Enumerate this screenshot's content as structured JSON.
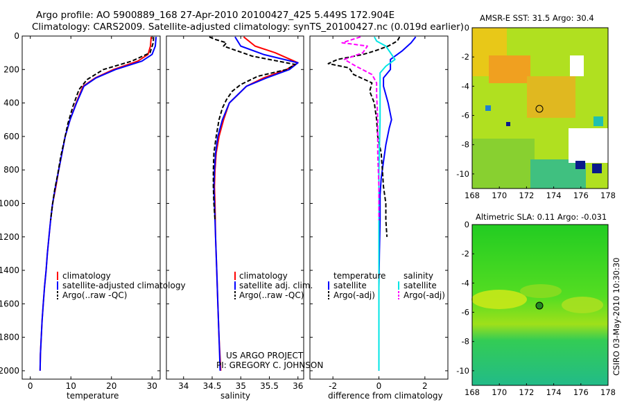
{
  "page": {
    "title_line1": "Argo profile: AO 5900889_168 27-Apr-2010 20100427_425 5.449S 172.904E",
    "title_line2": "Climatology: CARS2009. Satellite-adjusted climatology: synTS_20100427.nc (0.019d earlier)",
    "credit_line1": "US ARGO PROJECT",
    "credit_line2": "PI: GREGORY C. JOHNSON",
    "side_stamp": "CSIRO 03-May-2010 10:30:30"
  },
  "colors": {
    "climatology": "#ff0000",
    "satellite": "#0000ff",
    "argo": "#000000",
    "sal_satellite": "#00e5e5",
    "sal_argo": "#ff00ff"
  },
  "chart_data": [
    {
      "type": "line",
      "title": "",
      "xlabel": "temperature",
      "ylabel": "",
      "xlim": [
        -2,
        32
      ],
      "ylim": [
        2050,
        0
      ],
      "xticks": [
        0,
        10,
        20,
        30
      ],
      "yticks": [
        0,
        200,
        400,
        600,
        800,
        1000,
        1200,
        1400,
        1600,
        1800,
        2000
      ],
      "legend": [
        "climatology",
        "satellite-adjusted climatology",
        "Argo(..raw -QC)"
      ],
      "series": [
        {
          "name": "climatology",
          "color": "#ff0000",
          "dash": false,
          "points": [
            [
              29.8,
              5
            ],
            [
              29.6,
              60
            ],
            [
              29.0,
              110
            ],
            [
              26.5,
              150
            ],
            [
              20.5,
              200
            ],
            [
              16.0,
              250
            ],
            [
              13.0,
              300
            ],
            [
              11.3,
              400
            ],
            [
              9.8,
              500
            ],
            [
              8.6,
              600
            ],
            [
              7.8,
              700
            ],
            [
              7.0,
              800
            ],
            [
              6.3,
              900
            ],
            [
              5.5,
              1000
            ],
            [
              5.0,
              1100
            ],
            [
              4.6,
              1200
            ],
            [
              4.2,
              1300
            ],
            [
              3.9,
              1400
            ],
            [
              3.5,
              1500
            ],
            [
              3.2,
              1600
            ],
            [
              2.9,
              1700
            ],
            [
              2.7,
              1800
            ],
            [
              2.5,
              1900
            ],
            [
              2.4,
              2000
            ]
          ]
        },
        {
          "name": "satellite-adjusted climatology",
          "color": "#0000ff",
          "dash": false,
          "points": [
            [
              31.0,
              5
            ],
            [
              30.8,
              60
            ],
            [
              30.0,
              110
            ],
            [
              27.5,
              150
            ],
            [
              21.0,
              200
            ],
            [
              16.2,
              250
            ],
            [
              13.2,
              300
            ],
            [
              11.4,
              400
            ],
            [
              9.8,
              500
            ],
            [
              8.6,
              600
            ],
            [
              7.8,
              700
            ],
            [
              7.0,
              800
            ],
            [
              6.2,
              900
            ],
            [
              5.5,
              1000
            ],
            [
              5.0,
              1100
            ],
            [
              4.6,
              1200
            ],
            [
              4.2,
              1300
            ],
            [
              3.9,
              1400
            ],
            [
              3.5,
              1500
            ],
            [
              3.2,
              1600
            ],
            [
              2.9,
              1700
            ],
            [
              2.7,
              1800
            ],
            [
              2.5,
              1900
            ],
            [
              2.4,
              2000
            ]
          ]
        },
        {
          "name": "Argo(..raw -QC)",
          "color": "#000000",
          "dash": true,
          "points": [
            [
              30.4,
              5
            ],
            [
              30.3,
              40
            ],
            [
              29.5,
              100
            ],
            [
              25.0,
              150
            ],
            [
              18.0,
              200
            ],
            [
              14.0,
              260
            ],
            [
              12.0,
              320
            ],
            [
              10.5,
              420
            ],
            [
              9.3,
              520
            ],
            [
              8.4,
              620
            ],
            [
              7.5,
              720
            ],
            [
              6.8,
              820
            ],
            [
              6.0,
              920
            ],
            [
              5.4,
              1020
            ],
            [
              5.0,
              1100
            ]
          ]
        }
      ]
    },
    {
      "type": "line",
      "title": "",
      "xlabel": "salinity",
      "ylabel": "",
      "xlim": [
        33.7,
        36.1
      ],
      "ylim": [
        2050,
        0
      ],
      "xticks": [
        34,
        34.5,
        35,
        35.5,
        36
      ],
      "legend": [
        "climatology",
        "satellite adj. clim.",
        "Argo(..raw -QC)"
      ],
      "series": [
        {
          "name": "climatology",
          "color": "#ff0000",
          "dash": false,
          "points": [
            [
              35.05,
              5
            ],
            [
              35.25,
              60
            ],
            [
              35.6,
              100
            ],
            [
              36.0,
              160
            ],
            [
              35.8,
              200
            ],
            [
              35.4,
              250
            ],
            [
              35.1,
              300
            ],
            [
              34.95,
              350
            ],
            [
              34.8,
              400
            ],
            [
              34.7,
              500
            ],
            [
              34.62,
              600
            ],
            [
              34.57,
              700
            ],
            [
              34.55,
              800
            ],
            [
              34.54,
              900
            ],
            [
              34.55,
              1000
            ],
            [
              34.56,
              1200
            ],
            [
              34.58,
              1400
            ],
            [
              34.6,
              1600
            ],
            [
              34.62,
              1800
            ],
            [
              34.65,
              2000
            ]
          ]
        },
        {
          "name": "satellite adj. clim.",
          "color": "#0000ff",
          "dash": false,
          "points": [
            [
              34.9,
              5
            ],
            [
              35.0,
              60
            ],
            [
              35.4,
              110
            ],
            [
              36.0,
              160
            ],
            [
              35.85,
              200
            ],
            [
              35.45,
              250
            ],
            [
              35.1,
              300
            ],
            [
              34.95,
              350
            ],
            [
              34.8,
              400
            ],
            [
              34.68,
              500
            ],
            [
              34.6,
              600
            ],
            [
              34.56,
              700
            ],
            [
              34.54,
              800
            ],
            [
              34.53,
              900
            ],
            [
              34.54,
              1000
            ],
            [
              34.56,
              1200
            ],
            [
              34.58,
              1400
            ],
            [
              34.6,
              1600
            ],
            [
              34.62,
              1800
            ],
            [
              34.64,
              2000
            ]
          ]
        },
        {
          "name": "Argo(..raw -QC)",
          "color": "#000000",
          "dash": true,
          "points": [
            [
              34.45,
              5
            ],
            [
              34.55,
              20
            ],
            [
              34.75,
              40
            ],
            [
              34.7,
              60
            ],
            [
              35.2,
              120
            ],
            [
              35.95,
              170
            ],
            [
              35.8,
              200
            ],
            [
              35.3,
              240
            ],
            [
              35.0,
              290
            ],
            [
              34.85,
              330
            ],
            [
              34.75,
              380
            ],
            [
              34.68,
              430
            ],
            [
              34.62,
              500
            ],
            [
              34.57,
              600
            ],
            [
              34.53,
              700
            ],
            [
              34.52,
              800
            ],
            [
              34.52,
              900
            ],
            [
              34.53,
              1000
            ],
            [
              34.55,
              1100
            ]
          ]
        }
      ]
    },
    {
      "type": "line",
      "title": "",
      "xlabel": "difference from climatology",
      "ylabel": "",
      "xlim": [
        -3,
        3
      ],
      "ylim": [
        2050,
        0
      ],
      "xticks": [
        -2,
        0,
        2
      ],
      "legend_temperature_header": "temperature",
      "legend_salinity_header": "salinity",
      "legend": [
        "satellite",
        "Argo(-adj)",
        "satellite",
        "Argo(-adj)"
      ],
      "series": [
        {
          "name": "temperature satellite",
          "color": "#0000ff",
          "dash": false,
          "points": [
            [
              1.6,
              5
            ],
            [
              1.4,
              40
            ],
            [
              1.0,
              90
            ],
            [
              0.5,
              140
            ],
            [
              0.5,
              200
            ],
            [
              0.2,
              250
            ],
            [
              0.2,
              300
            ],
            [
              0.4,
              400
            ],
            [
              0.55,
              500
            ],
            [
              0.45,
              550
            ],
            [
              0.3,
              650
            ],
            [
              0.2,
              750
            ],
            [
              0.1,
              850
            ],
            [
              0.05,
              950
            ],
            [
              0.05,
              1100
            ],
            [
              0.02,
              1300
            ],
            [
              0.0,
              1500
            ],
            [
              0.0,
              1700
            ],
            [
              0.0,
              1900
            ],
            [
              0.0,
              2000
            ]
          ]
        },
        {
          "name": "temperature Argo(-adj)",
          "color": "#000000",
          "dash": true,
          "points": [
            [
              0.9,
              5
            ],
            [
              0.8,
              30
            ],
            [
              0.4,
              60
            ],
            [
              -0.2,
              90
            ],
            [
              -0.7,
              110
            ],
            [
              -1.8,
              140
            ],
            [
              -2.2,
              165
            ],
            [
              -1.3,
              190
            ],
            [
              -1.1,
              230
            ],
            [
              -0.3,
              280
            ],
            [
              -0.4,
              330
            ],
            [
              -0.2,
              400
            ],
            [
              -0.1,
              500
            ],
            [
              -0.05,
              600
            ],
            [
              0.1,
              700
            ],
            [
              0.15,
              800
            ],
            [
              0.2,
              900
            ],
            [
              0.3,
              1000
            ],
            [
              0.3,
              1100
            ],
            [
              0.35,
              1200
            ]
          ]
        },
        {
          "name": "salinity satellite",
          "color": "#00e5e5",
          "dash": false,
          "points": [
            [
              -0.2,
              5
            ],
            [
              -0.1,
              30
            ],
            [
              0.3,
              60
            ],
            [
              0.5,
              100
            ],
            [
              0.7,
              140
            ],
            [
              0.3,
              180
            ],
            [
              0.05,
              220
            ],
            [
              0.05,
              300
            ],
            [
              0.05,
              500
            ],
            [
              0.0,
              800
            ],
            [
              0.0,
              1200
            ],
            [
              0.0,
              1600
            ],
            [
              0.0,
              2000
            ]
          ]
        },
        {
          "name": "salinity Argo(-adj)",
          "color": "#ff00ff",
          "dash": true,
          "points": [
            [
              -0.8,
              5
            ],
            [
              -1.6,
              40
            ],
            [
              -0.5,
              60
            ],
            [
              -0.7,
              100
            ],
            [
              -1.5,
              140
            ],
            [
              -1.0,
              180
            ],
            [
              -0.3,
              230
            ],
            [
              -0.1,
              280
            ],
            [
              -0.1,
              350
            ],
            [
              -0.05,
              500
            ],
            [
              -0.05,
              700
            ],
            [
              0.0,
              900
            ],
            [
              0.0,
              1100
            ]
          ]
        }
      ]
    },
    {
      "type": "heatmap",
      "title": "AMSR-E SST: 31.5 Argo: 30.4",
      "xlabel": "",
      "ylabel": "",
      "xlim": [
        168,
        178
      ],
      "ylim": [
        -11,
        0
      ],
      "xticks": [
        168,
        170,
        172,
        174,
        176,
        178
      ],
      "yticks": [
        0,
        -2,
        -4,
        -6,
        -8,
        -10
      ],
      "marker": {
        "lon": 172.9,
        "lat": -5.45
      }
    },
    {
      "type": "heatmap",
      "title": "Altimetric SLA: 0.11 Argo: -0.031",
      "xlabel": "",
      "ylabel": "",
      "xlim": [
        168,
        178
      ],
      "ylim": [
        -11,
        0
      ],
      "xticks": [
        168,
        170,
        172,
        174,
        176,
        178
      ],
      "yticks": [
        0,
        -2,
        -4,
        -6,
        -8,
        -10
      ],
      "marker": {
        "lon": 172.9,
        "lat": -5.45
      }
    }
  ]
}
